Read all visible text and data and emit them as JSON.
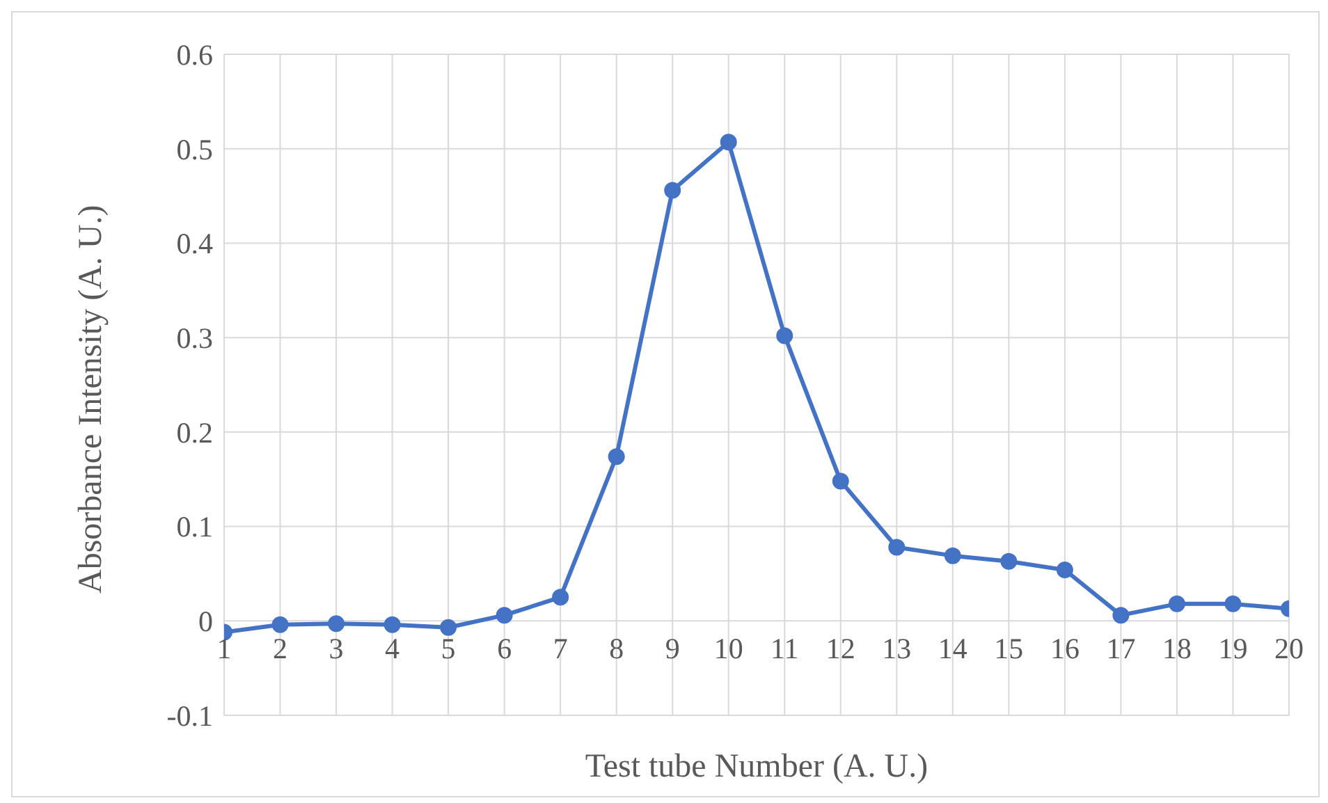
{
  "chart_data": {
    "type": "line",
    "xlabel": "Test tube Number (A. U.)",
    "ylabel": "Absorbance  Intensity (A. U.)",
    "x": [
      1,
      2,
      3,
      4,
      5,
      6,
      7,
      8,
      9,
      10,
      11,
      12,
      13,
      14,
      15,
      16,
      17,
      18,
      19,
      20
    ],
    "series": [
      {
        "color": "#4472c4",
        "values": [
          -0.012,
          -0.004,
          -0.003,
          -0.004,
          -0.007,
          0.006,
          0.025,
          0.174,
          0.456,
          0.507,
          0.302,
          0.148,
          0.078,
          0.069,
          0.063,
          0.054,
          0.006,
          0.018,
          0.018,
          0.013
        ]
      }
    ],
    "xlim": [
      1,
      20
    ],
    "xticks": [
      1,
      2,
      3,
      4,
      5,
      6,
      7,
      8,
      9,
      10,
      11,
      12,
      13,
      14,
      15,
      16,
      17,
      18,
      19,
      20
    ],
    "ylim": [
      -0.1,
      0.6
    ],
    "yticks": [
      -0.1,
      0,
      0.1,
      0.2,
      0.3,
      0.4,
      0.5,
      0.6
    ],
    "grid": true,
    "marker": "circle",
    "line_style": "solid",
    "legend": false
  }
}
